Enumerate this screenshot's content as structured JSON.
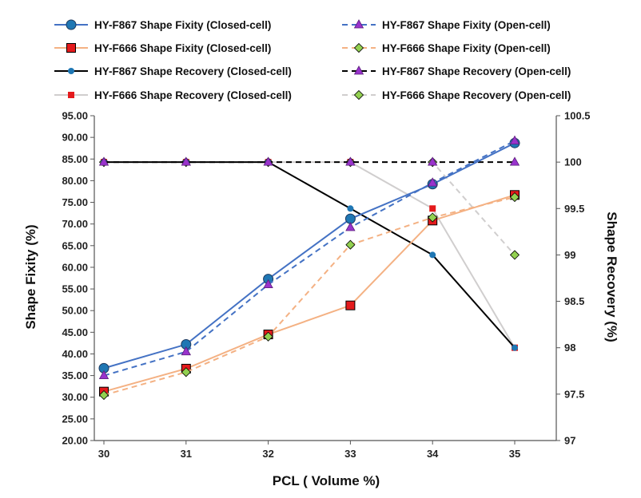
{
  "chart_data": {
    "type": "line",
    "xlabel": "PCL ( Volume %)",
    "ylabel": "Shape Fixity (%)",
    "y2label": "Shape Recovery (%)",
    "x": [
      30,
      31,
      32,
      33,
      34,
      35
    ],
    "x_ticks": [
      "30",
      "31",
      "32",
      "33",
      "34",
      "35"
    ],
    "ylim": [
      20,
      95
    ],
    "y_ticks": [
      "20.00",
      "25.00",
      "30.00",
      "35.00",
      "40.00",
      "45.00",
      "50.00",
      "55.00",
      "60.00",
      "65.00",
      "70.00",
      "75.00",
      "80.00",
      "85.00",
      "90.00",
      "95.00"
    ],
    "y2lim": [
      97,
      100.5
    ],
    "y2_ticks": [
      "97",
      "97.5",
      "98",
      "98.5",
      "99",
      "99.5",
      "100",
      "100.5"
    ],
    "grid": false,
    "legend_position": "top",
    "series": [
      {
        "name": "HY-F867 Shape Fixity (Closed-cell)",
        "axis": "left",
        "color": "#4472C4",
        "dash": "solid",
        "marker": "circle-large",
        "values": [
          36.7,
          42.2,
          57.3,
          71.2,
          79.2,
          88.7
        ]
      },
      {
        "name": "HY-F867 Shape Fixity (Open-cell)",
        "axis": "left",
        "color": "#4472C4",
        "dash": "dash",
        "marker": "triangle",
        "values": [
          35.0,
          40.5,
          56.0,
          69.2,
          79.5,
          89.2
        ]
      },
      {
        "name": "HY-F666 Shape Fixity (Closed-cell)",
        "axis": "left",
        "color": "#F4B183",
        "dash": "solid",
        "marker": "square",
        "values": [
          31.3,
          36.6,
          44.5,
          51.2,
          70.8,
          76.7
        ]
      },
      {
        "name": "HY-F666 Shape Fixity (Open-cell)",
        "axis": "left",
        "color": "#F4B183",
        "dash": "dash",
        "marker": "diamond",
        "values": [
          30.5,
          35.8,
          44.0,
          65.2,
          71.5,
          76.2
        ]
      },
      {
        "name": "HY-F867 Shape Recovery (Closed-cell)",
        "axis": "right",
        "color": "#000000",
        "dash": "solid",
        "marker": "circle-small",
        "values": [
          100,
          100,
          100,
          99.5,
          99.0,
          98.0
        ]
      },
      {
        "name": "HY-F867 Shape Recovery (Open-cell)",
        "axis": "right",
        "color": "#000000",
        "dash": "dash",
        "marker": "triangle",
        "values": [
          100,
          100,
          100,
          100,
          100,
          100
        ]
      },
      {
        "name": "HY-F666 Shape Recovery (Closed-cell)",
        "axis": "right",
        "color": "#D0CECE",
        "dash": "solid",
        "marker": "square-small",
        "values": [
          100,
          100,
          100,
          100,
          99.5,
          98.0
        ]
      },
      {
        "name": "HY-F666 Shape Recovery (Open-cell)",
        "axis": "right",
        "color": "#D0CECE",
        "dash": "dash",
        "marker": "diamond",
        "values": [
          100,
          100,
          100,
          100,
          100,
          99.0
        ]
      }
    ]
  },
  "colors": {
    "marker_blue": "#1F77B4",
    "marker_red": "#E41A1C",
    "marker_purple": "#9933CC",
    "marker_green": "#92D050",
    "axis": "#555555"
  }
}
